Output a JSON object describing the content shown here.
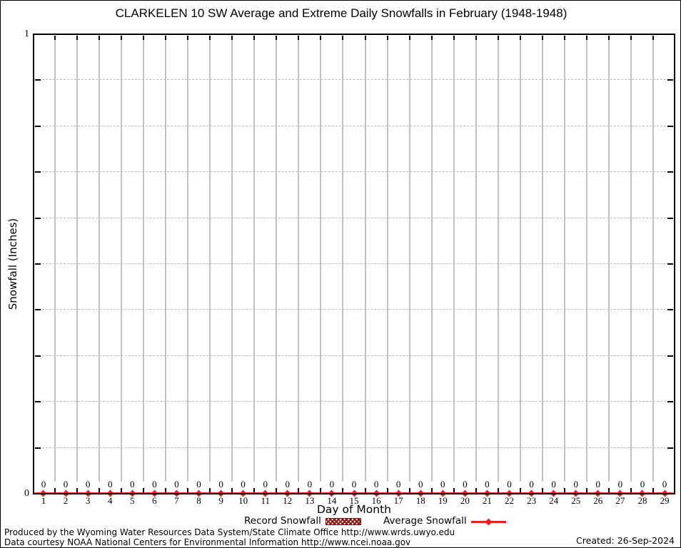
{
  "title": "CLARKELEN 10 SW Average and Extreme Daily Snowfalls in February (1948-1948)",
  "chart_data": {
    "type": "line",
    "title": "CLARKELEN 10 SW Average and Extreme Daily Snowfalls in February (1948-1948)",
    "xlabel": "Day of Month",
    "ylabel": "Snowfall (Inches)",
    "x": [
      1,
      2,
      3,
      4,
      5,
      6,
      7,
      8,
      9,
      10,
      11,
      12,
      13,
      14,
      15,
      16,
      17,
      18,
      19,
      20,
      21,
      22,
      23,
      24,
      25,
      26,
      27,
      28,
      29
    ],
    "series": [
      {
        "name": "Record Snowfall",
        "style": "hatched-bar",
        "values": [
          0,
          0,
          0,
          0,
          0,
          0,
          0,
          0,
          0,
          0,
          0,
          0,
          0,
          0,
          0,
          0,
          0,
          0,
          0,
          0,
          0,
          0,
          0,
          0,
          0,
          0,
          0,
          0,
          0
        ]
      },
      {
        "name": "Average Snowfall",
        "style": "line-with-markers",
        "values": [
          0,
          0,
          0,
          0,
          0,
          0,
          0,
          0,
          0,
          0,
          0,
          0,
          0,
          0,
          0,
          0,
          0,
          0,
          0,
          0,
          0,
          0,
          0,
          0,
          0,
          0,
          0,
          0,
          0
        ]
      }
    ],
    "point_labels_shown": true,
    "xlim": [
      0.55,
      29.45
    ],
    "ylim": [
      0,
      1
    ],
    "ytick_labels": [
      "0",
      "1"
    ],
    "y_minor_interval": 0.1,
    "grid": true,
    "legend_position": "bottom-center"
  },
  "footer": {
    "line1": "Produced by the Wyoming Water Resources Data System/State Climate Office http://www.wrds.uwyo.edu",
    "line2": "Data courtesy NOAA National Centers for Environmental Information http://www.ncei.noaa.gov",
    "created": "Created: 26-Sep-2024"
  },
  "colors": {
    "series_red": "#e8201e",
    "record_dark_red": "#8b1515",
    "grid_gray": "#c3c3c3",
    "dash_gray": "#b8b8b8",
    "axis_black": "#000000"
  }
}
